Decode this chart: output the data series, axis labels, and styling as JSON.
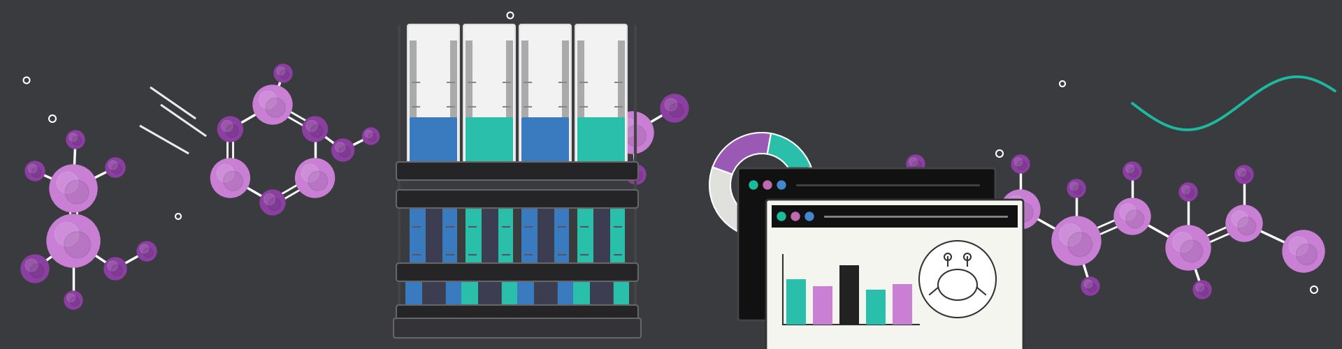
{
  "bg_color": "#3a3b3e",
  "purple_light": "#c87fd4",
  "purple_dark": "#8b3fa0",
  "teal": "#2abfaa",
  "blue_liq": "#4ab8d8",
  "white": "#ffffff",
  "tube_white": "#f2f2f2",
  "tube_dark": "#3d3d52",
  "sine_color": "#1db8a0",
  "rack_color": "#2a2a2e",
  "rack_edge": "#555555",
  "win_black": "#111111",
  "win_white": "#f5f5f0",
  "dot_teal": "#1abc9c",
  "dot_pink": "#c06ab0",
  "dot_blue": "#4488cc",
  "bar1": "#2abfaa",
  "bar2": "#c87fd4",
  "bar3": "#222222",
  "donut_white": "#e0e0e0",
  "donut_purple": "#9b59b6",
  "donut_teal": "#2abfaa"
}
